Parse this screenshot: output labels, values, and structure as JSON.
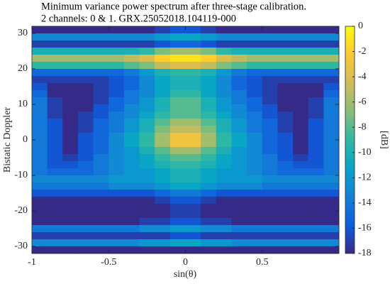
{
  "chart_data": {
    "type": "heatmap",
    "title": [
      "Minimum variance power spectrum after three-stage calibration.",
      "2 channels: 0 & 1.  GRX.25052018.104119-000"
    ],
    "xlabel": "sin(θ)",
    "ylabel": "Bistatic Doppler",
    "colorbar_label": "[dB]",
    "x": [
      -0.95,
      -0.85,
      -0.75,
      -0.65,
      -0.55,
      -0.45,
      -0.35,
      -0.25,
      -0.15,
      -0.05,
      0.05,
      0.15,
      0.25,
      0.35,
      0.45,
      0.55,
      0.65,
      0.75,
      0.85,
      0.95
    ],
    "y": [
      31,
      29,
      27,
      25,
      23,
      21,
      19,
      17,
      15,
      13,
      11,
      9,
      7,
      5,
      3,
      1,
      -1,
      -3,
      -5,
      -7,
      -9,
      -11,
      -13,
      -15,
      -17,
      -19,
      -21,
      -23,
      -25,
      -27,
      -29,
      -31
    ],
    "z": [
      [
        -18,
        -18,
        -18,
        -18,
        -18,
        -18,
        -18,
        -18,
        -17,
        -16,
        -16,
        -17,
        -18,
        -18,
        -18,
        -18,
        -18,
        -18,
        -18,
        -18
      ],
      [
        -13,
        -13,
        -13,
        -13,
        -13,
        -13,
        -13,
        -13,
        -12,
        -11,
        -11,
        -12,
        -13,
        -13,
        -13,
        -13,
        -13,
        -13,
        -13,
        -13
      ],
      [
        -17,
        -17,
        -17,
        -17,
        -17,
        -17,
        -17,
        -17,
        -16,
        -15,
        -15,
        -16,
        -17,
        -17,
        -17,
        -17,
        -17,
        -17,
        -17,
        -17
      ],
      [
        -10,
        -10,
        -10,
        -10,
        -10,
        -10,
        -10,
        -9,
        -7,
        -6,
        -6,
        -7,
        -9,
        -10,
        -10,
        -10,
        -10,
        -10,
        -10,
        -10
      ],
      [
        -6,
        -6,
        -6,
        -6,
        -6,
        -6,
        -5,
        -4,
        -2,
        -1,
        -1,
        -2,
        -4,
        -5,
        -6,
        -6,
        -6,
        -6,
        -6,
        -6
      ],
      [
        -9,
        -9,
        -9,
        -9,
        -9,
        -9,
        -8,
        -7,
        -5,
        -4,
        -4,
        -5,
        -7,
        -8,
        -9,
        -9,
        -9,
        -9,
        -9,
        -9
      ],
      [
        -15,
        -15,
        -15,
        -15,
        -15,
        -15,
        -14,
        -12,
        -10,
        -9,
        -9,
        -10,
        -12,
        -14,
        -15,
        -15,
        -15,
        -15,
        -15,
        -15
      ],
      [
        -17,
        -17,
        -17,
        -17,
        -17,
        -16,
        -15,
        -13,
        -11,
        -10,
        -10,
        -11,
        -13,
        -15,
        -16,
        -17,
        -17,
        -17,
        -17,
        -17
      ],
      [
        -16,
        -18,
        -18,
        -18,
        -17,
        -16,
        -15,
        -13,
        -11,
        -10,
        -10,
        -11,
        -13,
        -15,
        -16,
        -17,
        -18,
        -18,
        -18,
        -16
      ],
      [
        -15,
        -18,
        -18,
        -18,
        -17,
        -16,
        -14,
        -13,
        -11,
        -9,
        -9,
        -11,
        -13,
        -14,
        -16,
        -17,
        -18,
        -18,
        -18,
        -15
      ],
      [
        -14,
        -17,
        -18,
        -18,
        -17,
        -15,
        -14,
        -12,
        -10,
        -8,
        -8,
        -10,
        -12,
        -14,
        -15,
        -17,
        -18,
        -18,
        -17,
        -14
      ],
      [
        -14,
        -17,
        -18,
        -18,
        -16,
        -15,
        -13,
        -12,
        -10,
        -8,
        -8,
        -10,
        -12,
        -13,
        -15,
        -16,
        -18,
        -18,
        -17,
        -14
      ],
      [
        -14,
        -17,
        -18,
        -17,
        -16,
        -14,
        -13,
        -11,
        -9,
        -8,
        -8,
        -9,
        -11,
        -13,
        -14,
        -16,
        -17,
        -18,
        -17,
        -14
      ],
      [
        -14,
        -16,
        -18,
        -17,
        -15,
        -14,
        -12,
        -10,
        -8,
        -6,
        -6,
        -8,
        -10,
        -12,
        -14,
        -15,
        -17,
        -18,
        -16,
        -14
      ],
      [
        -14,
        -16,
        -18,
        -17,
        -15,
        -14,
        -12,
        -10,
        -7,
        -5,
        -5,
        -7,
        -10,
        -12,
        -14,
        -15,
        -17,
        -18,
        -16,
        -14
      ],
      [
        -14,
        -16,
        -18,
        -16,
        -15,
        -13,
        -11,
        -9,
        -6,
        -3,
        -3,
        -6,
        -9,
        -11,
        -13,
        -15,
        -16,
        -18,
        -16,
        -14
      ],
      [
        -14,
        -16,
        -18,
        -16,
        -15,
        -13,
        -11,
        -9,
        -6,
        -3,
        -3,
        -6,
        -9,
        -11,
        -13,
        -15,
        -16,
        -18,
        -16,
        -14
      ],
      [
        -14,
        -16,
        -18,
        -16,
        -15,
        -13,
        -12,
        -10,
        -8,
        -6,
        -6,
        -8,
        -10,
        -12,
        -13,
        -15,
        -16,
        -18,
        -16,
        -14
      ],
      [
        -14,
        -16,
        -17,
        -16,
        -14,
        -13,
        -12,
        -11,
        -9,
        -8,
        -8,
        -9,
        -11,
        -12,
        -13,
        -14,
        -16,
        -17,
        -16,
        -14
      ],
      [
        -14,
        -16,
        -16,
        -15,
        -14,
        -13,
        -12,
        -11,
        -10,
        -9,
        -9,
        -10,
        -11,
        -12,
        -13,
        -14,
        -15,
        -16,
        -16,
        -14
      ],
      [
        -14,
        -15,
        -15,
        -15,
        -14,
        -13,
        -12,
        -12,
        -11,
        -10,
        -10,
        -11,
        -12,
        -12,
        -13,
        -14,
        -15,
        -15,
        -15,
        -14
      ],
      [
        -13,
        -13,
        -13,
        -13,
        -13,
        -12,
        -12,
        -12,
        -11,
        -10,
        -10,
        -11,
        -12,
        -12,
        -12,
        -13,
        -13,
        -13,
        -13,
        -13
      ],
      [
        -14,
        -14,
        -14,
        -14,
        -14,
        -13,
        -13,
        -13,
        -12,
        -11,
        -11,
        -12,
        -13,
        -13,
        -13,
        -14,
        -14,
        -14,
        -14,
        -14
      ],
      [
        -16,
        -16,
        -16,
        -16,
        -16,
        -16,
        -16,
        -16,
        -15,
        -14,
        -14,
        -15,
        -16,
        -16,
        -16,
        -16,
        -16,
        -16,
        -16,
        -16
      ],
      [
        -18,
        -18,
        -18,
        -18,
        -18,
        -18,
        -18,
        -18,
        -17,
        -16,
        -16,
        -17,
        -18,
        -18,
        -18,
        -18,
        -18,
        -18,
        -18,
        -18
      ],
      [
        -18,
        -18,
        -18,
        -18,
        -18,
        -18,
        -18,
        -18,
        -18,
        -17,
        -17,
        -18,
        -18,
        -18,
        -18,
        -18,
        -18,
        -18,
        -18,
        -18
      ],
      [
        -18,
        -18,
        -18,
        -18,
        -18,
        -18,
        -18,
        -18,
        -18,
        -17,
        -17,
        -18,
        -18,
        -18,
        -18,
        -18,
        -18,
        -18,
        -18,
        -18
      ],
      [
        -18,
        -18,
        -18,
        -18,
        -18,
        -18,
        -18,
        -17,
        -17,
        -16,
        -16,
        -17,
        -17,
        -18,
        -18,
        -18,
        -18,
        -18,
        -18,
        -18
      ],
      [
        -14,
        -14,
        -14,
        -14,
        -14,
        -14,
        -14,
        -13,
        -13,
        -12,
        -12,
        -13,
        -13,
        -14,
        -14,
        -14,
        -14,
        -14,
        -14,
        -14
      ],
      [
        -17,
        -17,
        -17,
        -17,
        -17,
        -17,
        -17,
        -17,
        -17,
        -16,
        -16,
        -17,
        -17,
        -17,
        -17,
        -17,
        -17,
        -17,
        -17,
        -17
      ],
      [
        -13,
        -13,
        -13,
        -13,
        -13,
        -13,
        -13,
        -12,
        -12,
        -11,
        -11,
        -12,
        -12,
        -13,
        -13,
        -13,
        -13,
        -13,
        -13,
        -13
      ],
      [
        -18,
        -18,
        -18,
        -18,
        -18,
        -18,
        -18,
        -18,
        -18,
        -18,
        -18,
        -18,
        -18,
        -18,
        -18,
        -18,
        -18,
        -18,
        -18,
        -18
      ]
    ],
    "xlim": [
      -1,
      1
    ],
    "xticks": [
      -1,
      -0.5,
      0,
      0.5
    ],
    "ylim": [
      -32,
      32
    ],
    "yticks": [
      -30,
      -20,
      -10,
      0,
      10,
      20,
      30
    ],
    "clim": [
      -18,
      0
    ],
    "cticks": [
      -18,
      -16,
      -14,
      -12,
      -10,
      -8,
      -6,
      -4,
      -2,
      0
    ],
    "colormap": [
      "#352a87",
      "#0f5cdd",
      "#1481d6",
      "#06a4ca",
      "#2eb7a4",
      "#87bf77",
      "#d1bb59",
      "#fec832",
      "#f9fb0e"
    ]
  }
}
